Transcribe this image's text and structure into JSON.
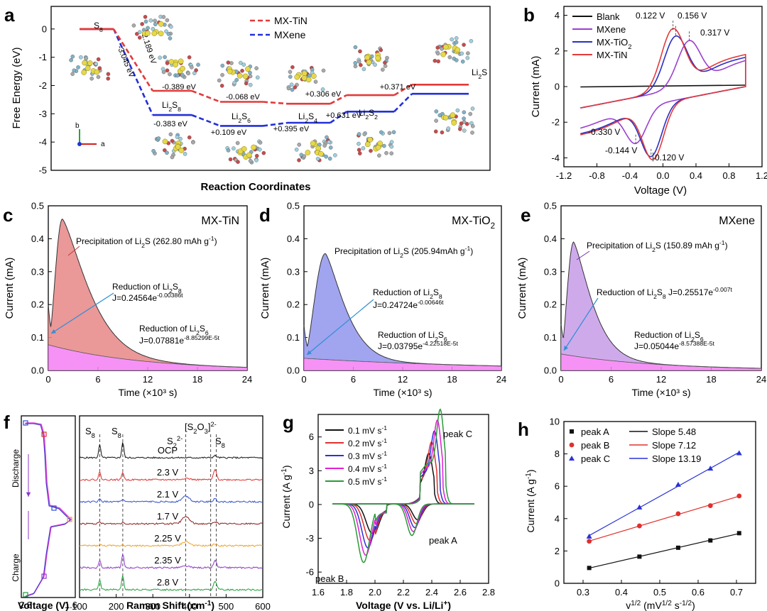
{
  "colors": {
    "mx_tin": "#e23a3a",
    "mxene_blue": "#2330d8",
    "mxene_purple": "#9a3fd0",
    "mx_tio2": "#2b2fc2",
    "blank": "#111111",
    "fill_tin": "#e88686",
    "fill_tio2": "#9094ec",
    "fill_mxene": "#c79be8",
    "fill_pink": "#f47ff4",
    "arrow": "#2f8fd6"
  },
  "panels": {
    "a": "a",
    "b": "b",
    "c": "c",
    "d": "d",
    "e": "e",
    "f": "f",
    "g": "g",
    "h": "h"
  },
  "chart_data": [
    {
      "panel": "a",
      "type": "line",
      "xlabel": "Reaction Coordinates",
      "ylabel": "Free Energy (eV)",
      "ylim": [
        -5,
        0.8
      ],
      "yticks": [
        "0",
        "-1",
        "-2",
        "-3",
        "-4",
        "-5"
      ],
      "categories": [
        "S8",
        "Li2S8",
        "Li2S6",
        "Li2S4",
        "Li2S2",
        "Li2S"
      ],
      "series": [
        {
          "name": "MX-TiN",
          "values": [
            0,
            -2.189,
            -2.578,
            -2.646,
            -2.34,
            -1.969
          ]
        },
        {
          "name": "MXene",
          "values": [
            0,
            -3.045,
            -3.428,
            -3.319,
            -2.924,
            -2.293
          ]
        }
      ],
      "annotations_tin": [
        "-2.189 eV",
        "-0.389 eV",
        "-0.068 eV",
        "+0.306 eV",
        "+0.371 eV"
      ],
      "annotations_mxene": [
        "-3.045 eV",
        "-0.383 eV",
        "+0.109 eV",
        "+0.395 eV",
        "+0.631 eV"
      ],
      "species_labels": [
        "S8",
        "Li2S8",
        "Li2S6",
        "Li2S4",
        "Li2S2",
        "Li2S"
      ],
      "axis_labels": [
        "a",
        "b"
      ]
    },
    {
      "panel": "b",
      "type": "line",
      "xlabel": "Voltage (V)",
      "ylabel": "Current (mA)",
      "xlim": [
        -1.2,
        1.2
      ],
      "ylim": [
        -4.5,
        4.5
      ],
      "xticks": [
        "-1.2",
        "-0.8",
        "-0.4",
        "0.0",
        "0.4",
        "0.8",
        "1.2"
      ],
      "yticks": [
        "4",
        "2",
        "0",
        "-2",
        "-4"
      ],
      "legend": [
        "Blank",
        "MXene",
        "MX-TiO2",
        "MX-TiN"
      ],
      "peak_labels": [
        "0.122 V",
        "0.156 V",
        "0.317 V",
        "-0.330 V",
        "-0.144 V",
        "-0.120 V"
      ],
      "peaks": [
        {
          "series": "MX-TiN",
          "x": 0.122,
          "y": 3.8
        },
        {
          "series": "MX-TiO2",
          "x": 0.156,
          "y": 3.4
        },
        {
          "series": "MXene",
          "x": 0.317,
          "y": 2.9
        },
        {
          "series": "MXene",
          "x": -0.33,
          "y": -2.6
        },
        {
          "series": "MX-TiO2",
          "x": -0.144,
          "y": -3.5
        },
        {
          "series": "MX-TiN",
          "x": -0.12,
          "y": -3.7
        }
      ]
    },
    {
      "panel": "c",
      "type": "area",
      "title": "MX-TiN",
      "xlabel": "Time (×10³ s)",
      "ylabel": "Current (mA)",
      "xlim": [
        0,
        24
      ],
      "ylim": [
        0,
        0.5
      ],
      "xticks": [
        "0",
        "6",
        "12",
        "18",
        "24"
      ],
      "yticks": [
        "0.0",
        "0.1",
        "0.2",
        "0.3",
        "0.4",
        "0.5"
      ],
      "peak": {
        "x": 1.7,
        "y": 0.46
      },
      "annotations": [
        "Precipitation of Li2S (262.80 mAh g-1)",
        "Reduction of Li2S8",
        "J=0.24564e-0.00386t",
        "Reduction of Li2S6",
        "J=0.07881e-8.85299E-5t"
      ]
    },
    {
      "panel": "d",
      "type": "area",
      "title": "MX-TiO2",
      "xlabel": "Time (×10³ s)",
      "ylabel": "Current (mA)",
      "xlim": [
        0,
        24
      ],
      "ylim": [
        0,
        0.5
      ],
      "xticks": [
        "0",
        "6",
        "12",
        "18",
        "24"
      ],
      "yticks": [
        "0.0",
        "0.1",
        "0.2",
        "0.3",
        "0.4",
        "0.5"
      ],
      "peak": {
        "x": 2.6,
        "y": 0.355
      },
      "annotations": [
        "Precipitation of Li2S (205.94mAh g-1)",
        "Reduction of Li2S8",
        "J=0.24724e-0.00646t",
        "Reduction of Li2S6",
        "J=0.03795e-4.22518E-5t"
      ]
    },
    {
      "panel": "e",
      "type": "area",
      "title": "MXene",
      "xlabel": "Time (×10³ s)",
      "ylabel": "Current (mA)",
      "xlim": [
        0,
        24
      ],
      "ylim": [
        0,
        0.5
      ],
      "xticks": [
        "0",
        "6",
        "12",
        "18",
        "24"
      ],
      "yticks": [
        "0.0",
        "0.1",
        "0.2",
        "0.3",
        "0.4",
        "0.5"
      ],
      "peak": {
        "x": 1.5,
        "y": 0.39
      },
      "annotations": [
        "Precipitation of Li2S (150.89 mAh g-1)",
        "Reduction of Li2S8",
        "J=0.25517e-0.007t",
        "Reduction of Li2S6",
        "J=0.05044e-8.57388E-5t"
      ]
    },
    {
      "panel": "f",
      "type": "line",
      "xlabel_left": "Voltage (V)",
      "xticks_left": [
        "2.8",
        "1.6"
      ],
      "left_labels": [
        "Discharge",
        "Charge"
      ],
      "xlabel": "Raman Shift (cm-1)",
      "xlim": [
        100,
        600
      ],
      "xticks": [
        "100",
        "200",
        "300",
        "400",
        "500",
        "600"
      ],
      "peak_labels": [
        "S8",
        "S8",
        "S2 2-",
        "[S2O3]2-",
        "S8"
      ],
      "spectra": [
        "OCP",
        "2.3 V",
        "2.1 V",
        "1.7 V",
        "2.25 V",
        "2.35 V",
        "2.8 V"
      ],
      "spectra_colors": [
        "#111111",
        "#e0302d",
        "#2f4fd0",
        "#8a1d1d",
        "#f0a020",
        "#8e36c9",
        "#1f9e3a"
      ]
    },
    {
      "panel": "g",
      "type": "line",
      "xlabel": "Voltage (V vs. Li/Li+)",
      "ylabel": "Current (A g-1)",
      "xlim": [
        1.6,
        2.8
      ],
      "ylim": [
        -7,
        8
      ],
      "xticks": [
        "1.6",
        "1.8",
        "2.0",
        "2.2",
        "2.4",
        "2.6",
        "2.8"
      ],
      "yticks": [
        "6",
        "3",
        "0",
        "-3",
        "-6"
      ],
      "legend": [
        "0.1 mV s-1",
        "0.2 mV s-1",
        "0.3 mV s-1",
        "0.4 mV s-1",
        "0.5 mV s-1"
      ],
      "series_colors": [
        "#111111",
        "#e0302d",
        "#2f2fd6",
        "#e01fd2",
        "#2a9a3a"
      ],
      "peak_labels": [
        "peak C",
        "peak A",
        "peak B"
      ]
    },
    {
      "panel": "h",
      "type": "scatter",
      "xlabel": "v1/2 (mV1/2 s-1/2)",
      "ylabel": "Current (A g-1)",
      "xlim": [
        0.25,
        0.75
      ],
      "ylim": [
        0,
        10
      ],
      "xticks": [
        "0.3",
        "0.4",
        "0.5",
        "0.6",
        "0.7"
      ],
      "yticks": [
        "0",
        "2",
        "4",
        "6",
        "8",
        "10"
      ],
      "x": [
        0.316,
        0.447,
        0.548,
        0.632,
        0.707
      ],
      "series": [
        {
          "name": "peak A",
          "values": [
            0.95,
            1.65,
            2.2,
            2.65,
            3.1
          ],
          "slope_label": "Slope 5.48"
        },
        {
          "name": "peak B",
          "values": [
            2.6,
            3.55,
            4.3,
            4.8,
            5.4
          ],
          "slope_label": "Slope 7.12"
        },
        {
          "name": "peak C",
          "values": [
            2.9,
            4.7,
            6.1,
            7.1,
            8.05
          ],
          "slope_label": "Slope 13.19"
        }
      ]
    }
  ]
}
